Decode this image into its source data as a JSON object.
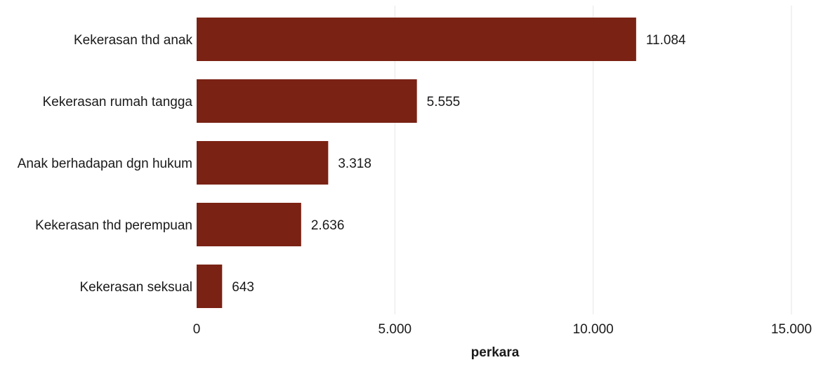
{
  "chart_data": {
    "type": "bar",
    "orientation": "horizontal",
    "categories": [
      "Kekerasan thd anak",
      "Kekerasan rumah tangga",
      "Anak berhadapan dgn hukum",
      "Kekerasan thd perempuan",
      "Kekerasan seksual"
    ],
    "values": [
      11084,
      5555,
      3318,
      2636,
      643
    ],
    "value_labels": [
      "11.084",
      "5.555",
      "3.318",
      "2.636",
      "643"
    ],
    "xlabel": "perkara",
    "ylabel": "",
    "xlim": [
      0,
      15000
    ],
    "ticks": [
      {
        "value": 0,
        "label": "0"
      },
      {
        "value": 5000,
        "label": "5.000"
      },
      {
        "value": 10000,
        "label": "10.000"
      },
      {
        "value": 15000,
        "label": "15.000"
      }
    ],
    "grid": true,
    "legend": "none",
    "bar_color": "#7a2214"
  }
}
